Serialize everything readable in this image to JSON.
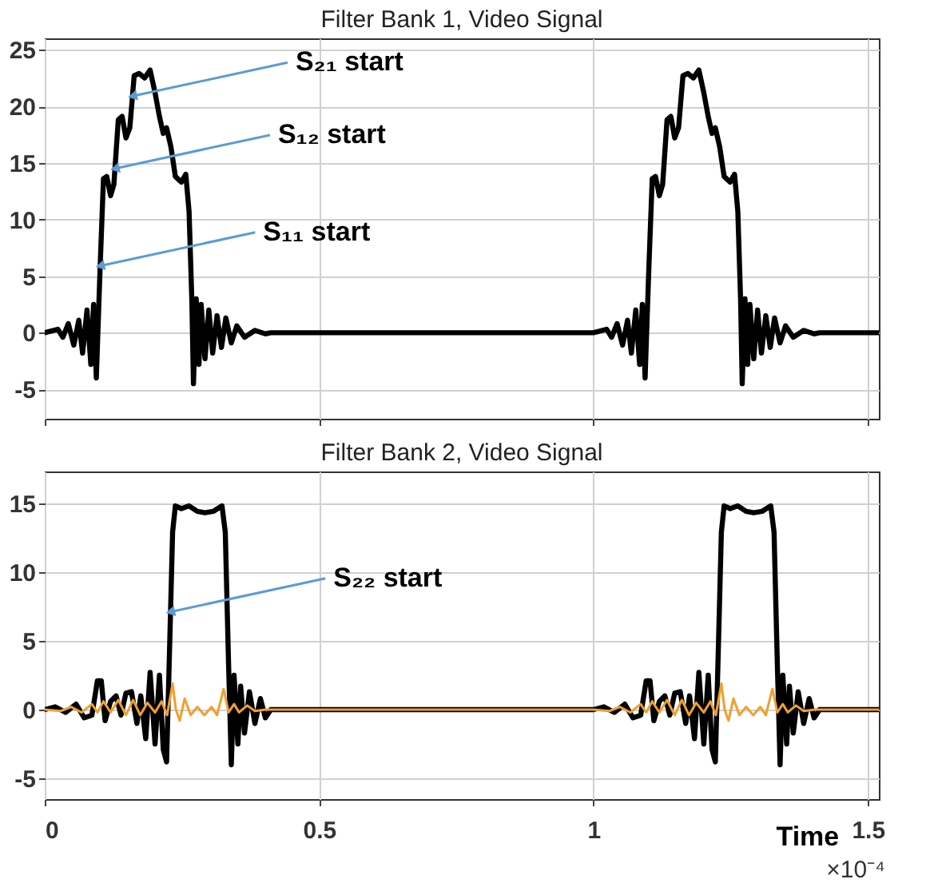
{
  "chart_data": [
    {
      "type": "line",
      "title": "Filter Bank 1, Video Signal",
      "grid": true,
      "tick_labels": "y",
      "line_style": "solid",
      "marker": "none",
      "xlim": [
        0,
        1.52
      ],
      "xticks": [
        0,
        0.5,
        1,
        1.5
      ],
      "ylim": [
        -7.6,
        26.0
      ],
      "yticks": [
        -5,
        0,
        5,
        10,
        15,
        20,
        25
      ],
      "annotations": [
        {
          "text": "S₂₁  start",
          "x": 0.16,
          "y": 20.9
        },
        {
          "text": "S₁₂ start",
          "x": 0.128,
          "y": 14.5
        },
        {
          "text": "S₁₁  start",
          "x": 0.101,
          "y": 5.9
        }
      ],
      "series": [
        {
          "color": "#000000",
          "x": [
            0,
            0.024,
            0.033,
            0.043,
            0.053,
            0.062,
            0.069,
            0.077,
            0.084,
            0.089,
            0.094,
            0.101,
            0.107,
            0.113,
            0.12,
            0.126,
            0.134,
            0.141,
            0.148,
            0.155,
            0.163,
            0.172,
            0.182,
            0.192,
            0.201,
            0.209,
            0.216,
            0.222,
            0.23,
            0.238,
            0.249,
            0.257,
            0.263,
            0.268,
            0.271,
            0.276,
            0.281,
            0.285,
            0.292,
            0.299,
            0.306,
            0.314,
            0.322,
            0.33,
            0.34,
            0.35,
            0.364,
            0.383,
            0.402,
            0.412,
            1.0,
            1.024,
            1.033,
            1.043,
            1.053,
            1.062,
            1.069,
            1.077,
            1.084,
            1.089,
            1.094,
            1.101,
            1.107,
            1.113,
            1.12,
            1.126,
            1.134,
            1.141,
            1.148,
            1.155,
            1.163,
            1.172,
            1.182,
            1.192,
            1.201,
            1.209,
            1.216,
            1.222,
            1.23,
            1.238,
            1.249,
            1.257,
            1.263,
            1.268,
            1.271,
            1.276,
            1.281,
            1.285,
            1.292,
            1.299,
            1.306,
            1.314,
            1.322,
            1.33,
            1.34,
            1.35,
            1.364,
            1.383,
            1.402,
            1.412,
            1.52
          ],
          "values": [
            0,
            0.3,
            -0.4,
            0.8,
            -1.1,
            1.1,
            -1.8,
            2.0,
            -2.8,
            2.5,
            -4.0,
            5.9,
            13.6,
            13.8,
            12.1,
            13.1,
            18.8,
            19.1,
            17.2,
            18.1,
            22.7,
            22.9,
            22.5,
            23.2,
            21.2,
            19.1,
            17.6,
            18.1,
            16.4,
            13.8,
            13.3,
            14.0,
            10.7,
            3.0,
            -4.5,
            3.0,
            -2.8,
            2.5,
            -2.3,
            2.0,
            -1.8,
            1.5,
            -1.3,
            1.3,
            -0.9,
            0.6,
            -0.4,
            0.2,
            -0.1,
            0,
            0,
            0.3,
            -0.4,
            0.8,
            -1.1,
            1.1,
            -1.8,
            2.0,
            -2.8,
            2.5,
            -4.0,
            5.9,
            13.6,
            13.8,
            12.1,
            13.1,
            18.8,
            19.1,
            17.2,
            18.1,
            22.7,
            22.9,
            22.5,
            23.2,
            21.2,
            19.1,
            17.6,
            18.1,
            16.4,
            13.8,
            13.3,
            14.0,
            10.7,
            3.0,
            -4.5,
            3.0,
            -2.8,
            2.5,
            -2.3,
            2.0,
            -1.8,
            1.5,
            -1.3,
            1.3,
            -0.9,
            0.6,
            -0.4,
            0.2,
            -0.1,
            0,
            0
          ]
        }
      ]
    },
    {
      "type": "line",
      "title": "Filter Bank 2, Video Signal",
      "xlabel": "Time",
      "grid": true,
      "line_style": "solid",
      "marker": "none",
      "xlim": [
        0,
        1.52
      ],
      "xticks": [
        0,
        0.5,
        1,
        1.5
      ],
      "ylim": [
        -6.5,
        17.3
      ],
      "yticks": [
        -5,
        0,
        5,
        10,
        15
      ],
      "annotations": [
        {
          "text": "S₂₂  start",
          "x": 0.229,
          "y": 7.1
        },
        "×10⁻⁴"
      ],
      "series": [
        {
          "color": "#000000",
          "x": [
            0,
            0.019,
            0.038,
            0.057,
            0.072,
            0.086,
            0.096,
            0.103,
            0.11,
            0.12,
            0.13,
            0.139,
            0.148,
            0.158,
            0.168,
            0.175,
            0.184,
            0.192,
            0.201,
            0.209,
            0.216,
            0.222,
            0.228,
            0.233,
            0.238,
            0.249,
            0.263,
            0.278,
            0.292,
            0.307,
            0.323,
            0.329,
            0.335,
            0.34,
            0.345,
            0.352,
            0.357,
            0.364,
            0.373,
            0.383,
            0.393,
            0.402,
            0.412,
            1.0,
            1.019,
            1.038,
            1.057,
            1.072,
            1.086,
            1.096,
            1.103,
            1.11,
            1.12,
            1.13,
            1.139,
            1.148,
            1.158,
            1.168,
            1.175,
            1.184,
            1.192,
            1.201,
            1.209,
            1.216,
            1.222,
            1.228,
            1.233,
            1.238,
            1.249,
            1.263,
            1.278,
            1.292,
            1.307,
            1.323,
            1.329,
            1.335,
            1.34,
            1.345,
            1.352,
            1.357,
            1.364,
            1.373,
            1.383,
            1.393,
            1.402,
            1.412,
            1.52
          ],
          "values": [
            0,
            0.2,
            -0.2,
            0.4,
            -0.6,
            -0.4,
            2.1,
            2.1,
            -0.8,
            0.6,
            1.0,
            -0.4,
            1.2,
            1.3,
            -1.0,
            1.0,
            -2.1,
            2.7,
            -2.5,
            2.5,
            -2.9,
            -3.8,
            5.2,
            12.9,
            14.8,
            14.6,
            14.8,
            14.4,
            14.3,
            14.4,
            14.8,
            12.9,
            3.3,
            -4.0,
            2.5,
            -2.5,
            1.7,
            -1.7,
            1.3,
            -1.0,
            0.8,
            -0.6,
            0,
            0,
            0.2,
            -0.2,
            0.4,
            -0.6,
            -0.4,
            2.1,
            2.1,
            -0.8,
            0.6,
            1.0,
            -0.4,
            1.2,
            1.3,
            -1.0,
            1.0,
            -2.1,
            2.7,
            -2.5,
            2.5,
            -2.9,
            -3.8,
            5.2,
            12.9,
            14.8,
            14.6,
            14.8,
            14.4,
            14.3,
            14.4,
            14.8,
            12.9,
            3.3,
            -4.0,
            2.5,
            -2.5,
            1.7,
            -1.7,
            1.3,
            -1.0,
            0.8,
            -0.6,
            0,
            0
          ]
        },
        {
          "color": "#f0a030",
          "x": [
            0,
            0.029,
            0.048,
            0.067,
            0.086,
            0.096,
            0.107,
            0.12,
            0.134,
            0.148,
            0.161,
            0.174,
            0.187,
            0.201,
            0.213,
            0.223,
            0.233,
            0.239,
            0.246,
            0.255,
            0.266,
            0.278,
            0.291,
            0.304,
            0.314,
            0.326,
            0.335,
            0.345,
            0.354,
            0.369,
            0.383,
            0.402,
            1.0,
            1.029,
            1.048,
            1.067,
            1.086,
            1.096,
            1.107,
            1.12,
            1.134,
            1.148,
            1.161,
            1.174,
            1.187,
            1.201,
            1.213,
            1.223,
            1.233,
            1.239,
            1.246,
            1.255,
            1.266,
            1.278,
            1.291,
            1.304,
            1.314,
            1.326,
            1.335,
            1.345,
            1.354,
            1.369,
            1.383,
            1.402,
            1.52
          ],
          "values": [
            0,
            -0.1,
            0.2,
            -0.2,
            0.4,
            -0.2,
            0.6,
            -0.2,
            0.7,
            -0.4,
            0.7,
            -0.4,
            0.5,
            -0.2,
            0.6,
            -0.4,
            1.9,
            0,
            -0.8,
            0.8,
            -0.4,
            0.2,
            -0.4,
            0.2,
            -0.4,
            1.5,
            -0.2,
            0.4,
            -0.2,
            0.3,
            -0.1,
            0,
            0,
            -0.1,
            0.2,
            -0.2,
            0.4,
            -0.2,
            0.6,
            -0.2,
            0.7,
            -0.4,
            0.7,
            -0.4,
            0.5,
            -0.2,
            0.6,
            -0.4,
            1.9,
            0,
            -0.8,
            0.8,
            -0.4,
            0.2,
            -0.4,
            0.2,
            -0.4,
            1.5,
            -0.2,
            0.4,
            -0.2,
            0.3,
            -0.1,
            0,
            0
          ]
        }
      ]
    }
  ]
}
